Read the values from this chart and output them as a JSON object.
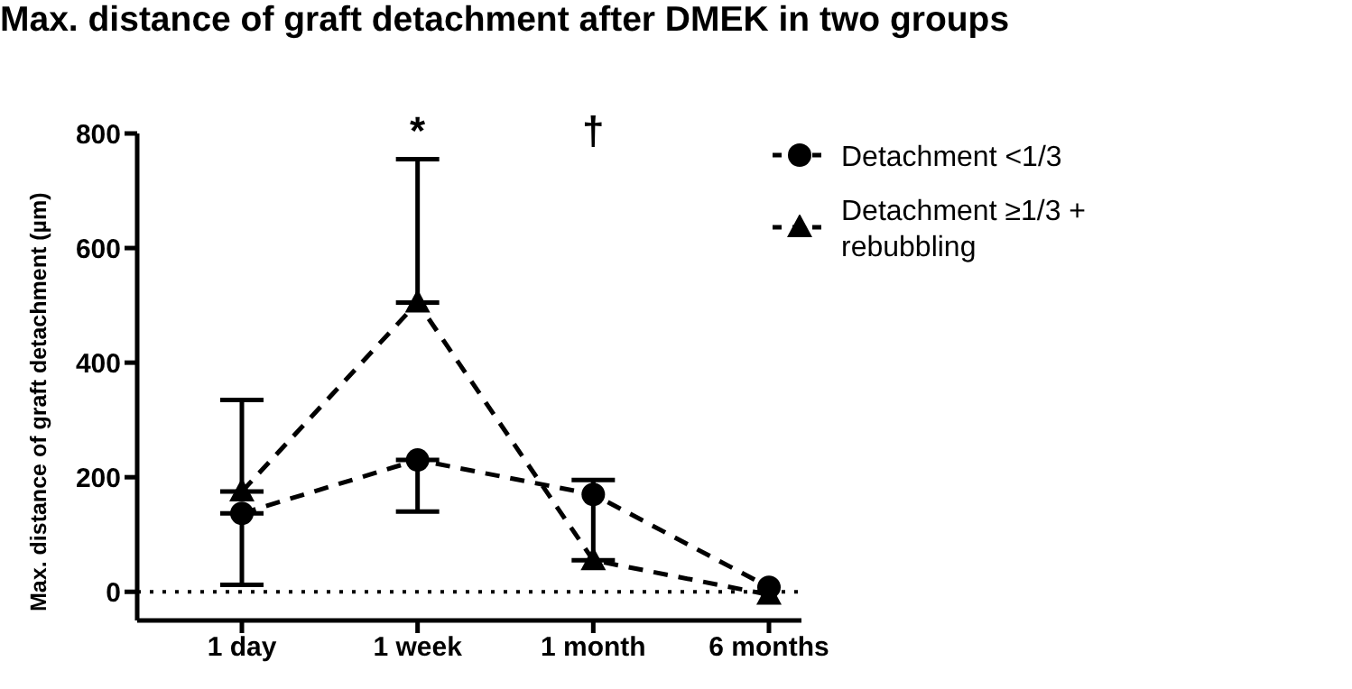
{
  "chart_data": {
    "type": "line",
    "title": "Max. distance of graft detachment after DMEK in two groups",
    "ylabel": "Max. distance of graft detachment (µm)",
    "categories": [
      "1 day",
      "1 week",
      "1 month",
      "6 months"
    ],
    "series": [
      {
        "name": "Detachment <1/3",
        "color": "#000000",
        "marker": "circle",
        "values": [
          137,
          230,
          170,
          8
        ],
        "errors": [
          [
            12,
            137
          ],
          [
            140,
            230
          ],
          null,
          null
        ]
      },
      {
        "name": "Detachment ≥1/3 + rebubbling",
        "color": "#000000",
        "marker": "triangle",
        "values": [
          175,
          505,
          55,
          -5
        ],
        "errors": [
          [
            175,
            335
          ],
          [
            505,
            755
          ],
          [
            55,
            195
          ],
          null
        ]
      }
    ],
    "ylim": [
      -50,
      800
    ],
    "yticks": [
      0,
      200,
      400,
      600,
      800
    ],
    "grid": false,
    "legend": "right",
    "line_style": "dashed",
    "ref_lines": [
      {
        "axis": "y",
        "value": 0,
        "line_style": "dotted",
        "color": "#000000"
      }
    ],
    "annotations": [
      "*",
      "†"
    ]
  }
}
